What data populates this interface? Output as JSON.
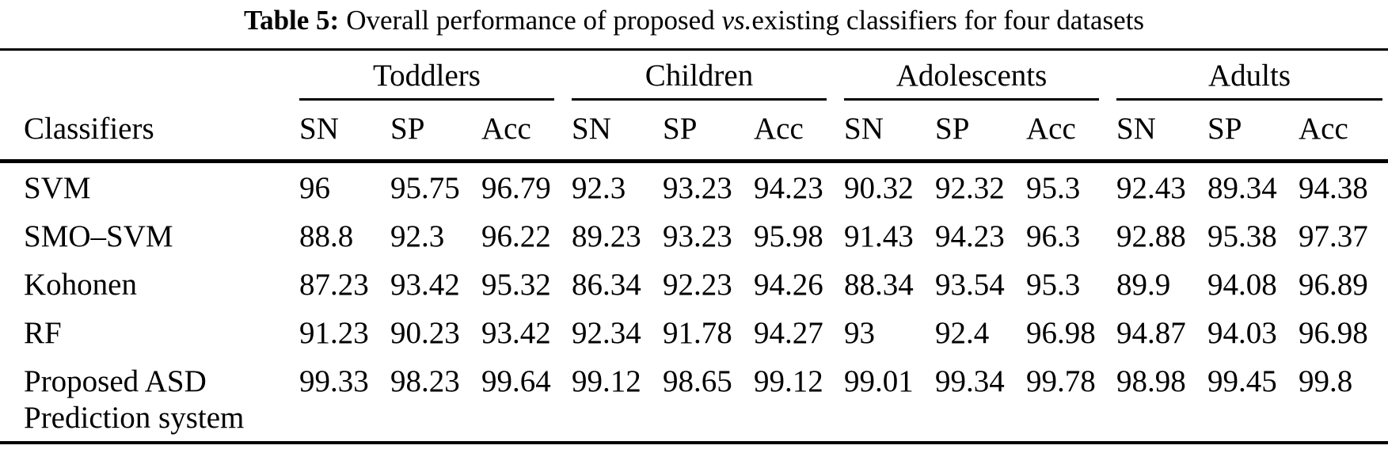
{
  "caption": {
    "label": "Table 5:",
    "before_vs": "Overall performance of proposed ",
    "vs": "vs.",
    "after_vs": "existing classifiers for four datasets"
  },
  "table": {
    "classifiers_header": "Classifiers",
    "groups": [
      "Toddlers",
      "Children",
      "Adolescents",
      "Adults"
    ],
    "metrics": [
      "SN",
      "SP",
      "Acc"
    ],
    "rows": [
      {
        "name": "SVM",
        "cells": [
          "96",
          "95.75",
          "96.79",
          "92.3",
          "93.23",
          "94.23",
          "90.32",
          "92.32",
          "95.3",
          "92.43",
          "89.34",
          "94.38"
        ]
      },
      {
        "name": "SMO–SVM",
        "cells": [
          "88.8",
          "92.3",
          "96.22",
          "89.23",
          "93.23",
          "95.98",
          "91.43",
          "94.23",
          "96.3",
          "92.88",
          "95.38",
          "97.37"
        ]
      },
      {
        "name": "Kohonen",
        "cells": [
          "87.23",
          "93.42",
          "95.32",
          "86.34",
          "92.23",
          "94.26",
          "88.34",
          "93.54",
          "95.3",
          "89.9",
          "94.08",
          "96.89"
        ]
      },
      {
        "name": "RF",
        "cells": [
          "91.23",
          "90.23",
          "93.42",
          "92.34",
          "91.78",
          "94.27",
          "93",
          "92.4",
          "96.98",
          "94.87",
          "94.03",
          "96.98"
        ]
      },
      {
        "name": "Proposed ASD Prediction system",
        "cells": [
          "99.33",
          "98.23",
          "99.64",
          "99.12",
          "98.65",
          "99.12",
          "99.01",
          "99.34",
          "99.78",
          "98.98",
          "99.45",
          "99.8"
        ]
      }
    ]
  }
}
